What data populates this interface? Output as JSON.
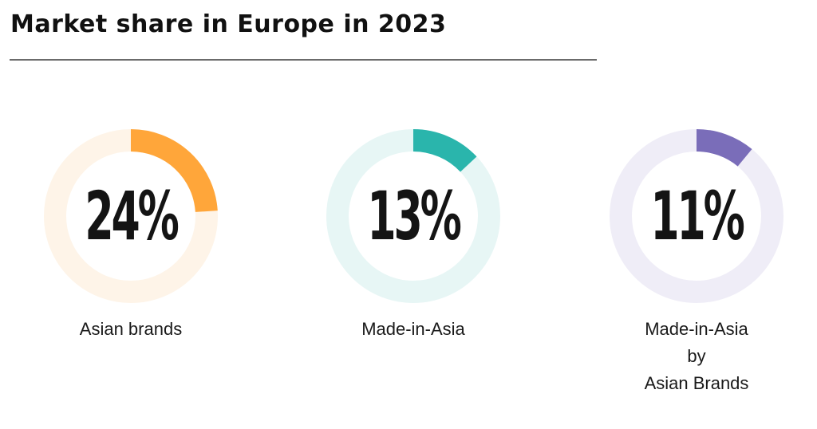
{
  "title": "Market share in Europe in 2023",
  "chart_data": {
    "type": "pie",
    "title": "Market share in Europe in 2023",
    "charts": [
      {
        "value": 24,
        "value_label": "24%",
        "label_lines": [
          "Asian brands"
        ],
        "color": "#ffa63a",
        "track_color": "#fef4e8"
      },
      {
        "value": 13,
        "value_label": "13%",
        "label_lines": [
          "Made-in-Asia"
        ],
        "color": "#2ab5ac",
        "track_color": "#e7f6f5"
      },
      {
        "value": 11,
        "value_label": "11%",
        "label_lines": [
          "Made-in-Asia",
          "by",
          "Asian Brands"
        ],
        "color": "#7a6db9",
        "track_color": "#efedf7"
      }
    ]
  }
}
